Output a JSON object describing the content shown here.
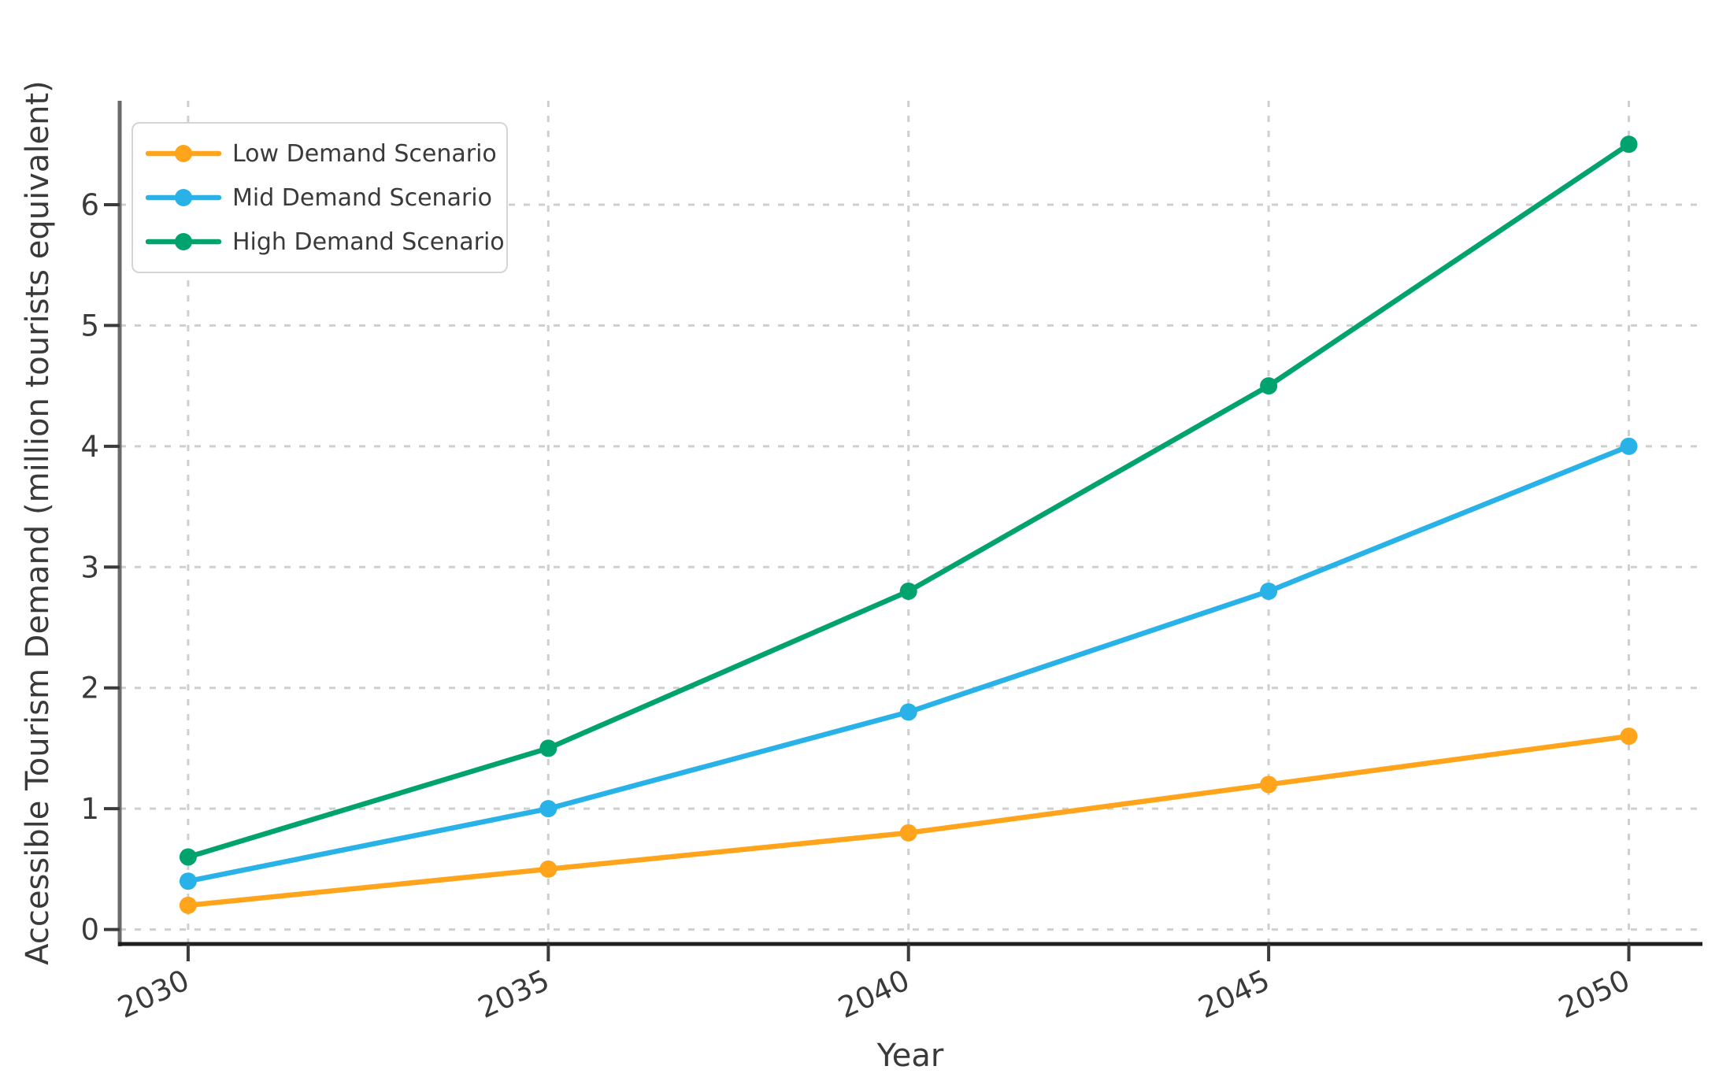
{
  "figure": {
    "background": "#ffffff",
    "text_color": "#3a3a3a",
    "grid_color": "#cfcfcf",
    "left_spine_color": "#6a6a6a",
    "bottom_spine_color": "#1f1f1f",
    "tick_color": "#3a3a3a",
    "legend_border_color": "#d5d5d5"
  },
  "chart_data": {
    "type": "line",
    "title": "",
    "xlabel": "Year",
    "ylabel": "Accessible Tourism Demand (million tourists equivalent)",
    "x": [
      2030,
      2035,
      2040,
      2045,
      2050
    ],
    "x_tick_labels": [
      "2030",
      "2035",
      "2040",
      "2045",
      "2050"
    ],
    "y_ticks": [
      0,
      1,
      2,
      3,
      4,
      5,
      6
    ],
    "y_tick_labels": [
      "0",
      "1",
      "2",
      "3",
      "4",
      "5",
      "6"
    ],
    "xlim": [
      2029.05,
      2051.0
    ],
    "ylim": [
      -0.12,
      6.86
    ],
    "grid": true,
    "grid_style": "dashed",
    "x_tick_rotation_deg": 25,
    "legend_position": "upper-left",
    "series": [
      {
        "name": "Low Demand Scenario",
        "color": "#FFA41B",
        "marker": "circle",
        "values": [
          0.2,
          0.5,
          0.8,
          1.2,
          1.6
        ]
      },
      {
        "name": "Mid Demand Scenario",
        "color": "#29B2E8",
        "marker": "circle",
        "values": [
          0.4,
          1.0,
          1.8,
          2.8,
          4.0
        ]
      },
      {
        "name": "High Demand Scenario",
        "color": "#00A26E",
        "marker": "circle",
        "values": [
          0.6,
          1.5,
          2.8,
          4.5,
          6.5
        ]
      }
    ]
  }
}
